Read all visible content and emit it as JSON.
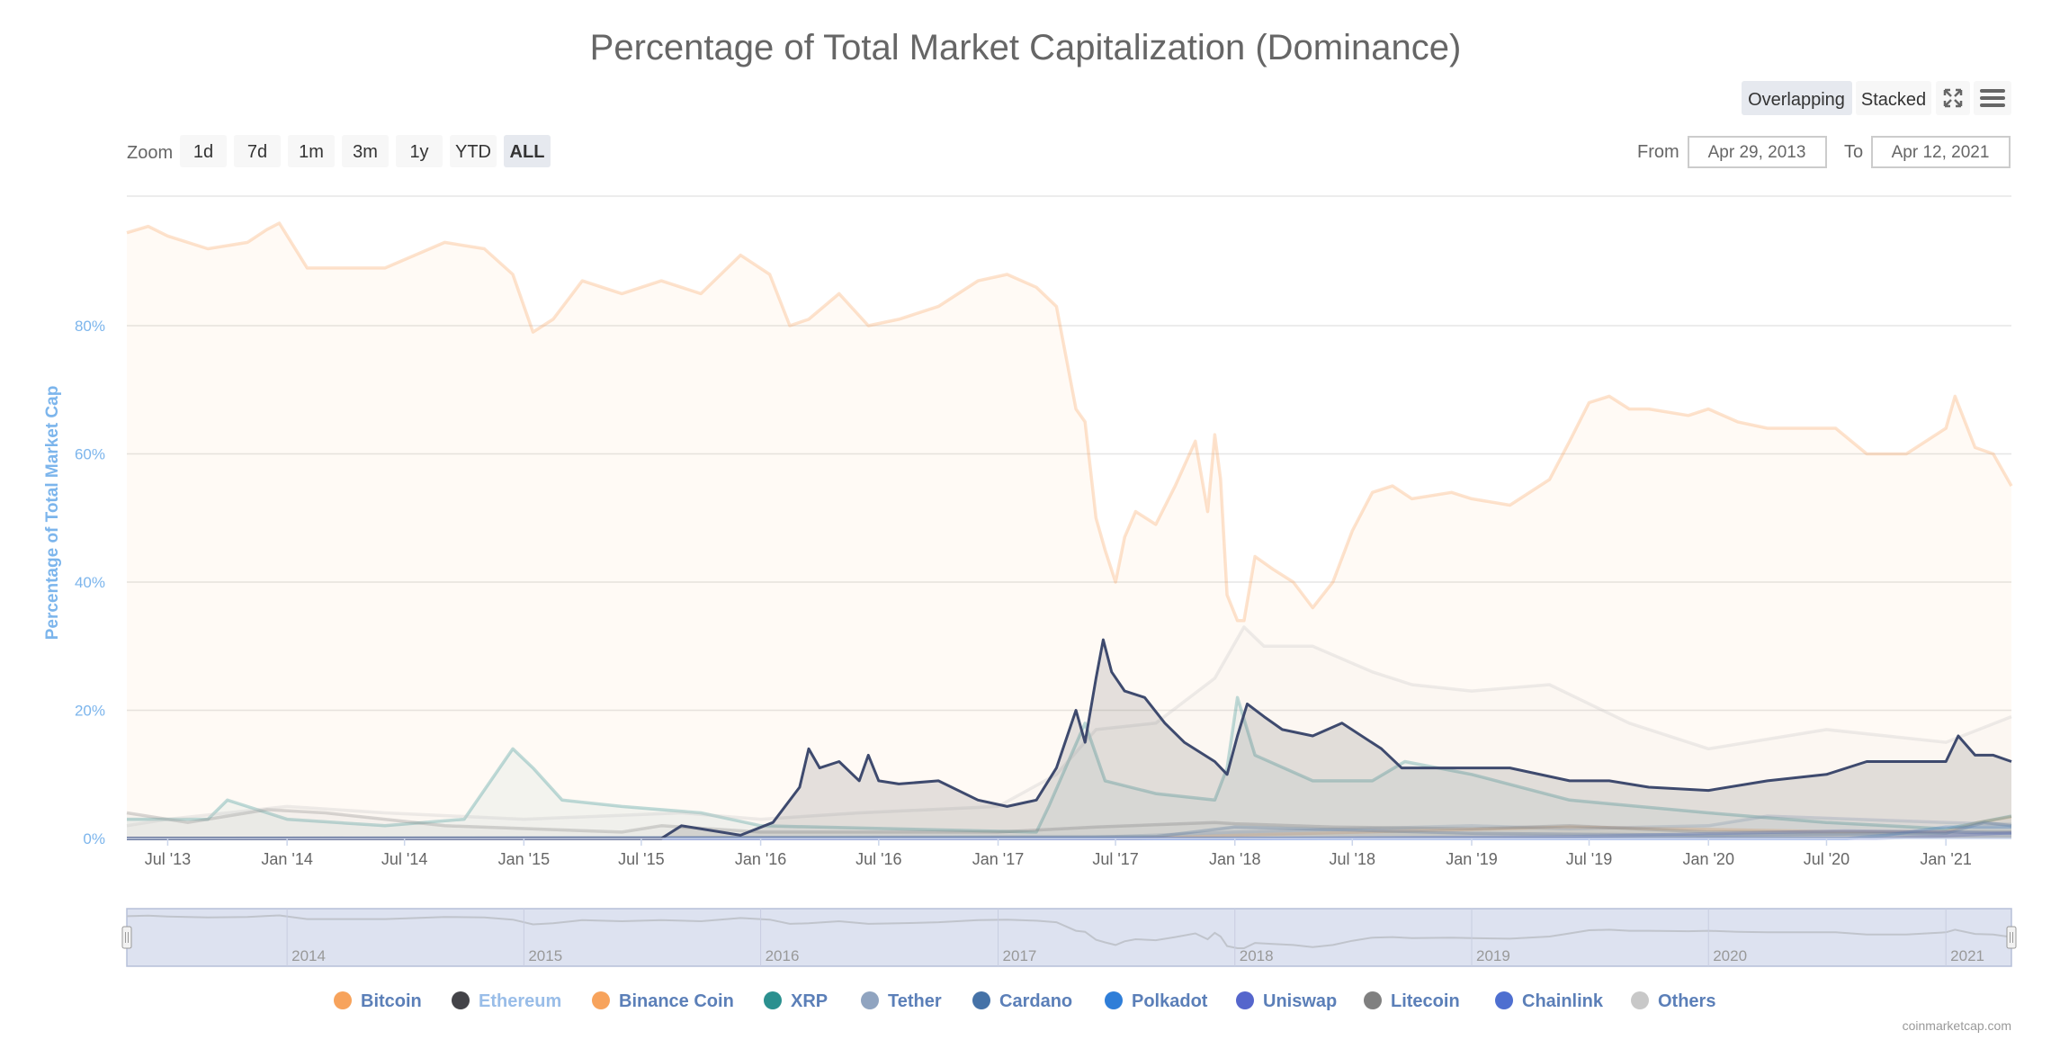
{
  "chart_title": "Percentage of Total Market Capitalization (Dominance)",
  "mode_buttons": [
    {
      "label": "Overlapping",
      "active": true
    },
    {
      "label": "Stacked",
      "active": false
    }
  ],
  "toolbar_icons": [
    "fullscreen-icon",
    "menu-icon"
  ],
  "zoom": {
    "label": "Zoom",
    "buttons": [
      {
        "label": "1d"
      },
      {
        "label": "7d"
      },
      {
        "label": "1m"
      },
      {
        "label": "3m"
      },
      {
        "label": "1y"
      },
      {
        "label": "YTD"
      },
      {
        "label": "ALL",
        "active": true
      }
    ]
  },
  "range": {
    "from_label": "From",
    "from": "Apr 29, 2013",
    "to_label": "To",
    "to": "Apr 12, 2021"
  },
  "credit": "coinmarketcap.com",
  "navigator_labels": [
    "2014",
    "2015",
    "2016",
    "2017",
    "2018",
    "2019",
    "2020",
    "2021"
  ],
  "chart_data": {
    "type": "area",
    "title": "Percentage of Total Market Capitalization (Dominance)",
    "ylabel": "Percentage of Total Market Cap",
    "xlabel": "",
    "ylim": [
      0,
      100
    ],
    "yticks": [
      "0%",
      "20%",
      "40%",
      "60%",
      "80%"
    ],
    "ytick_values": [
      0,
      20,
      40,
      60,
      80
    ],
    "xlim": [
      "2013-04-29",
      "2021-04-12"
    ],
    "xticks": [
      "Jul '13",
      "Jan '14",
      "Jul '14",
      "Jan '15",
      "Jul '15",
      "Jan '16",
      "Jul '16",
      "Jan '17",
      "Jul '17",
      "Jan '18",
      "Jul '18",
      "Jan '19",
      "Jul '19",
      "Jan '20",
      "Jul '20",
      "Jan '21"
    ],
    "xtick_dates": [
      "2013-07-01",
      "2014-01-01",
      "2014-07-01",
      "2015-01-01",
      "2015-07-01",
      "2016-01-01",
      "2016-07-01",
      "2017-01-01",
      "2017-07-01",
      "2018-01-01",
      "2018-07-01",
      "2019-01-01",
      "2019-07-01",
      "2020-01-01",
      "2020-07-01",
      "2021-01-01"
    ],
    "grid": true,
    "legend_position": "bottom",
    "mode": "overlapping",
    "series": [
      {
        "name": "Bitcoin",
        "color": "#f7a35c",
        "highlighted": false,
        "x": [
          "2013-04-29",
          "2013-06-01",
          "2013-07-01",
          "2013-09-01",
          "2013-11-01",
          "2013-12-01",
          "2013-12-20",
          "2014-02-01",
          "2014-04-01",
          "2014-06-01",
          "2014-09-01",
          "2014-11-01",
          "2014-12-15",
          "2015-01-15",
          "2015-02-15",
          "2015-04-01",
          "2015-06-01",
          "2015-08-01",
          "2015-10-01",
          "2015-12-01",
          "2016-01-15",
          "2016-02-15",
          "2016-03-15",
          "2016-05-01",
          "2016-06-15",
          "2016-08-01",
          "2016-10-01",
          "2016-12-01",
          "2017-01-15",
          "2017-03-01",
          "2017-04-01",
          "2017-05-01",
          "2017-05-15",
          "2017-06-01",
          "2017-06-15",
          "2017-07-01",
          "2017-07-15",
          "2017-08-01",
          "2017-09-01",
          "2017-10-01",
          "2017-11-01",
          "2017-11-20",
          "2017-12-01",
          "2017-12-10",
          "2017-12-20",
          "2018-01-05",
          "2018-01-15",
          "2018-02-01",
          "2018-03-01",
          "2018-04-01",
          "2018-05-01",
          "2018-06-01",
          "2018-07-01",
          "2018-08-01",
          "2018-09-01",
          "2018-10-01",
          "2018-12-01",
          "2019-01-01",
          "2019-03-01",
          "2019-05-01",
          "2019-06-01",
          "2019-07-01",
          "2019-08-01",
          "2019-09-01",
          "2019-10-01",
          "2019-12-01",
          "2020-01-01",
          "2020-02-15",
          "2020-04-01",
          "2020-06-01",
          "2020-07-15",
          "2020-09-01",
          "2020-11-01",
          "2021-01-01",
          "2021-01-15",
          "2021-02-15",
          "2021-03-15",
          "2021-04-12"
        ],
        "y": [
          94.5,
          95.5,
          94,
          92,
          93,
          95,
          96,
          89,
          89,
          89,
          93,
          92,
          88,
          79,
          81,
          87,
          85,
          87,
          85,
          91,
          88,
          80,
          81,
          85,
          80,
          81,
          83,
          87,
          88,
          86,
          83,
          67,
          65,
          50,
          45,
          40,
          47,
          51,
          49,
          55,
          62,
          51,
          63,
          56,
          38,
          34,
          34,
          44,
          42,
          40,
          36,
          40,
          48,
          54,
          55,
          53,
          54,
          53,
          52,
          56,
          62,
          68,
          69,
          67,
          67,
          66,
          67,
          65,
          64,
          64,
          64,
          60,
          60,
          64,
          69,
          61,
          60,
          55
        ]
      },
      {
        "name": "Ethereum",
        "color": "#434348",
        "highlighted": true,
        "x": [
          "2013-04-29",
          "2015-08-01",
          "2015-09-01",
          "2015-12-01",
          "2016-01-20",
          "2016-03-01",
          "2016-03-15",
          "2016-04-01",
          "2016-05-01",
          "2016-06-01",
          "2016-06-15",
          "2016-07-01",
          "2016-08-01",
          "2016-10-01",
          "2016-12-01",
          "2017-01-15",
          "2017-03-01",
          "2017-04-01",
          "2017-05-01",
          "2017-05-15",
          "2017-06-01",
          "2017-06-12",
          "2017-06-25",
          "2017-07-15",
          "2017-08-15",
          "2017-09-15",
          "2017-10-15",
          "2017-12-01",
          "2017-12-20",
          "2018-01-05",
          "2018-01-20",
          "2018-02-15",
          "2018-03-15",
          "2018-05-01",
          "2018-06-15",
          "2018-08-15",
          "2018-09-15",
          "2019-01-01",
          "2019-03-01",
          "2019-06-01",
          "2019-08-01",
          "2019-10-01",
          "2020-01-01",
          "2020-04-01",
          "2020-07-01",
          "2020-09-01",
          "2020-11-01",
          "2021-01-01",
          "2021-01-20",
          "2021-02-15",
          "2021-03-15",
          "2021-04-12"
        ],
        "y": [
          0,
          0,
          2,
          0.5,
          2.5,
          8,
          14,
          11,
          12,
          9,
          13,
          9,
          8.5,
          9,
          6,
          5,
          6,
          11,
          20,
          15,
          25,
          31,
          26,
          23,
          22,
          18,
          15,
          12,
          10,
          16,
          21,
          19,
          17,
          16,
          18,
          14,
          11,
          11,
          11,
          9,
          9,
          8,
          7.5,
          9,
          10,
          12,
          12,
          12,
          16,
          13,
          13,
          12
        ]
      },
      {
        "name": "Binance Coin",
        "color": "#f7a35c",
        "highlighted": false,
        "x": [
          "2013-04-29",
          "2017-08-01",
          "2018-01-01",
          "2019-06-01",
          "2020-07-01",
          "2021-01-01",
          "2021-02-20",
          "2021-04-12"
        ],
        "y": [
          0,
          0,
          0.5,
          1.8,
          1.1,
          1.1,
          2.5,
          3.4
        ]
      },
      {
        "name": "XRP",
        "color": "#2b908f",
        "highlighted": false,
        "x": [
          "2013-04-29",
          "2013-09-01",
          "2013-10-01",
          "2014-01-01",
          "2014-06-01",
          "2014-10-01",
          "2014-12-15",
          "2015-01-15",
          "2015-03-01",
          "2015-06-01",
          "2015-10-01",
          "2016-01-01",
          "2017-03-01",
          "2017-03-20",
          "2017-05-15",
          "2017-06-15",
          "2017-09-01",
          "2017-12-01",
          "2017-12-20",
          "2018-01-05",
          "2018-02-01",
          "2018-05-01",
          "2018-08-01",
          "2018-09-20",
          "2019-01-01",
          "2019-06-01",
          "2020-01-01",
          "2020-07-01",
          "2021-01-01",
          "2021-04-12"
        ],
        "y": [
          3,
          3,
          6,
          3,
          2,
          3,
          14,
          11,
          6,
          5,
          4,
          2,
          1,
          5,
          18,
          9,
          7,
          6,
          11,
          22,
          13,
          9,
          9,
          12,
          10,
          6,
          4,
          2.5,
          1.5,
          3.5
        ]
      },
      {
        "name": "Tether",
        "color": "#90a4c0",
        "highlighted": false,
        "x": [
          "2013-04-29",
          "2017-06-01",
          "2018-01-01",
          "2019-01-01",
          "2019-06-01",
          "2020-01-01",
          "2020-04-01",
          "2021-01-01",
          "2021-04-12"
        ],
        "y": [
          0,
          0.2,
          1,
          2,
          1.5,
          2,
          3.5,
          2.5,
          2.2
        ]
      },
      {
        "name": "Cardano",
        "color": "#4572a7",
        "highlighted": false,
        "x": [
          "2013-04-29",
          "2017-09-01",
          "2018-01-01",
          "2019-01-01",
          "2020-01-01",
          "2021-01-01",
          "2021-03-01",
          "2021-04-12"
        ],
        "y": [
          0,
          0.3,
          1.8,
          0.8,
          0.5,
          0.8,
          2.5,
          2
        ]
      },
      {
        "name": "Polkadot",
        "color": "#2f7ed8",
        "highlighted": false,
        "x": [
          "2013-04-29",
          "2020-08-01",
          "2020-10-01",
          "2021-01-01",
          "2021-04-12"
        ],
        "y": [
          0,
          0,
          0.5,
          1.8,
          1.8
        ]
      },
      {
        "name": "Uniswap",
        "color": "#5566cc",
        "highlighted": false,
        "x": [
          "2013-04-29",
          "2020-09-15",
          "2021-01-01",
          "2021-04-12"
        ],
        "y": [
          0,
          0,
          0.4,
          0.9
        ]
      },
      {
        "name": "Litecoin",
        "color": "#808080",
        "highlighted": false,
        "x": [
          "2013-04-29",
          "2013-08-01",
          "2013-12-01",
          "2014-03-01",
          "2014-09-01",
          "2015-06-01",
          "2015-08-01",
          "2016-01-01",
          "2017-01-01",
          "2017-06-01",
          "2017-12-01",
          "2018-01-01",
          "2018-06-01",
          "2019-01-01",
          "2019-06-01",
          "2020-01-01",
          "2021-01-01",
          "2021-04-12"
        ],
        "y": [
          4,
          2.5,
          4.5,
          4,
          2,
          1,
          2,
          1,
          1,
          1.8,
          2.5,
          2.3,
          1.8,
          1.5,
          2,
          1,
          1,
          1
        ]
      },
      {
        "name": "Chainlink",
        "color": "#4e6fd0",
        "highlighted": false,
        "x": [
          "2013-04-29",
          "2018-01-01",
          "2019-06-01",
          "2020-08-01",
          "2021-01-01",
          "2021-04-12"
        ],
        "y": [
          0,
          0,
          0.3,
          1.2,
          1,
          0.8
        ]
      },
      {
        "name": "Others",
        "color": "#c8c8c8",
        "highlighted": false,
        "x": [
          "2013-04-29",
          "2013-07-01",
          "2014-01-01",
          "2014-06-01",
          "2015-01-01",
          "2015-09-01",
          "2016-01-01",
          "2016-06-01",
          "2017-01-01",
          "2017-04-01",
          "2017-06-01",
          "2017-09-01",
          "2017-12-01",
          "2018-01-15",
          "2018-02-15",
          "2018-05-01",
          "2018-08-01",
          "2018-10-01",
          "2019-01-01",
          "2019-05-01",
          "2019-09-01",
          "2020-01-01",
          "2020-07-01",
          "2021-01-01",
          "2021-04-12"
        ],
        "y": [
          2,
          3,
          5,
          4,
          3,
          4,
          3,
          4,
          5,
          10,
          17,
          18,
          25,
          33,
          30,
          30,
          26,
          24,
          23,
          24,
          18,
          14,
          17,
          15,
          19
        ]
      }
    ]
  }
}
